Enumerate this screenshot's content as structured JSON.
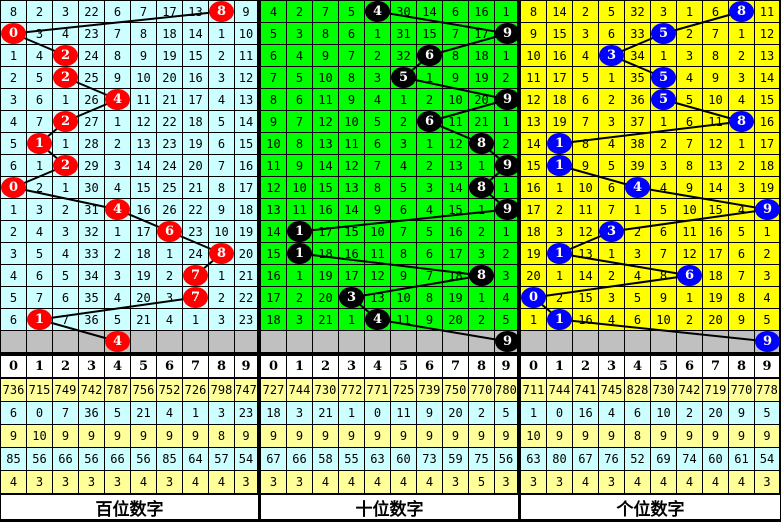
{
  "header_digits": [
    0,
    1,
    2,
    3,
    4,
    5,
    6,
    7,
    8,
    9
  ],
  "sections": [
    {
      "title": "百位数字",
      "bg_color": "#ccffff",
      "ball_color": "#ff0000",
      "balls": [
        8,
        0,
        2,
        2,
        4,
        2,
        1,
        2,
        0,
        4,
        6,
        8,
        7,
        7,
        1
      ],
      "next_ball": 4,
      "rows": [
        [
          8,
          2,
          3,
          22,
          6,
          7,
          17,
          13,
          null,
          9
        ],
        [
          null,
          3,
          4,
          23,
          7,
          8,
          18,
          14,
          1,
          10
        ],
        [
          1,
          4,
          null,
          24,
          8,
          9,
          19,
          15,
          2,
          11
        ],
        [
          2,
          5,
          null,
          25,
          9,
          10,
          20,
          16,
          3,
          12
        ],
        [
          3,
          6,
          1,
          26,
          null,
          11,
          21,
          17,
          4,
          13
        ],
        [
          4,
          7,
          null,
          27,
          1,
          12,
          22,
          18,
          5,
          14
        ],
        [
          5,
          null,
          1,
          28,
          2,
          13,
          23,
          19,
          6,
          15
        ],
        [
          6,
          1,
          null,
          29,
          3,
          14,
          24,
          20,
          7,
          16
        ],
        [
          null,
          2,
          1,
          30,
          4,
          15,
          25,
          21,
          8,
          17
        ],
        [
          1,
          3,
          2,
          31,
          null,
          16,
          26,
          22,
          9,
          18
        ],
        [
          2,
          4,
          3,
          32,
          1,
          17,
          null,
          23,
          10,
          19
        ],
        [
          3,
          5,
          4,
          33,
          2,
          18,
          1,
          24,
          null,
          20
        ],
        [
          4,
          6,
          5,
          34,
          3,
          19,
          2,
          null,
          1,
          21
        ],
        [
          5,
          7,
          6,
          35,
          4,
          20,
          3,
          null,
          2,
          22
        ],
        [
          6,
          null,
          7,
          36,
          5,
          21,
          4,
          1,
          3,
          23
        ]
      ],
      "stats": [
        [
          736,
          715,
          749,
          742,
          787,
          756,
          752,
          726,
          798,
          747
        ],
        [
          6,
          0,
          7,
          36,
          5,
          21,
          4,
          1,
          3,
          23
        ],
        [
          9,
          10,
          9,
          9,
          9,
          9,
          9,
          9,
          8,
          9
        ],
        [
          85,
          56,
          66,
          56,
          66,
          56,
          85,
          64,
          57,
          54
        ],
        [
          4,
          3,
          3,
          3,
          3,
          4,
          3,
          4,
          4,
          3
        ]
      ]
    },
    {
      "title": "十位数字",
      "bg_color": "#00ff00",
      "ball_color": "#000000",
      "balls": [
        4,
        9,
        6,
        5,
        9,
        6,
        8,
        9,
        8,
        9,
        1,
        1,
        8,
        3,
        4
      ],
      "next_ball": 9,
      "rows": [
        [
          4,
          2,
          7,
          5,
          null,
          30,
          14,
          6,
          16,
          1
        ],
        [
          5,
          3,
          8,
          6,
          1,
          31,
          15,
          7,
          17,
          null
        ],
        [
          6,
          4,
          9,
          7,
          2,
          32,
          null,
          8,
          18,
          1
        ],
        [
          7,
          5,
          10,
          8,
          3,
          null,
          1,
          9,
          19,
          2
        ],
        [
          8,
          6,
          11,
          9,
          4,
          1,
          2,
          10,
          20,
          null
        ],
        [
          9,
          7,
          12,
          10,
          5,
          2,
          null,
          11,
          21,
          1
        ],
        [
          10,
          8,
          13,
          11,
          6,
          3,
          1,
          12,
          null,
          2
        ],
        [
          11,
          9,
          14,
          12,
          7,
          4,
          2,
          13,
          1,
          null
        ],
        [
          12,
          10,
          15,
          13,
          8,
          5,
          3,
          14,
          null,
          1
        ],
        [
          13,
          11,
          16,
          14,
          9,
          6,
          4,
          15,
          1,
          null
        ],
        [
          14,
          null,
          17,
          15,
          10,
          7,
          5,
          16,
          2,
          1
        ],
        [
          15,
          null,
          18,
          16,
          11,
          8,
          6,
          17,
          3,
          2
        ],
        [
          16,
          1,
          19,
          17,
          12,
          9,
          7,
          18,
          null,
          3
        ],
        [
          17,
          2,
          20,
          null,
          13,
          10,
          8,
          19,
          1,
          4
        ],
        [
          18,
          3,
          21,
          1,
          null,
          11,
          9,
          20,
          2,
          5
        ]
      ],
      "stats": [
        [
          727,
          744,
          730,
          772,
          771,
          725,
          739,
          750,
          770,
          780
        ],
        [
          18,
          3,
          21,
          1,
          0,
          11,
          9,
          20,
          2,
          5
        ],
        [
          9,
          9,
          9,
          9,
          9,
          9,
          9,
          9,
          9,
          9
        ],
        [
          67,
          66,
          58,
          55,
          63,
          60,
          73,
          59,
          75,
          56
        ],
        [
          3,
          3,
          4,
          4,
          4,
          4,
          4,
          3,
          5,
          3
        ]
      ]
    },
    {
      "title": "个位数字",
      "bg_color": "#ffff00",
      "ball_color": "#0000ff",
      "balls": [
        8,
        5,
        3,
        5,
        5,
        8,
        1,
        1,
        4,
        9,
        3,
        1,
        6,
        0,
        1
      ],
      "next_ball": 9,
      "rows": [
        [
          8,
          14,
          2,
          5,
          32,
          3,
          1,
          6,
          null,
          11
        ],
        [
          9,
          15,
          3,
          6,
          33,
          null,
          2,
          7,
          1,
          12
        ],
        [
          10,
          16,
          4,
          null,
          34,
          1,
          3,
          8,
          2,
          13
        ],
        [
          11,
          17,
          5,
          1,
          35,
          null,
          4,
          9,
          3,
          14
        ],
        [
          12,
          18,
          6,
          2,
          36,
          null,
          5,
          10,
          4,
          15
        ],
        [
          13,
          19,
          7,
          3,
          37,
          1,
          6,
          11,
          null,
          16
        ],
        [
          14,
          null,
          8,
          4,
          38,
          2,
          7,
          12,
          1,
          17
        ],
        [
          15,
          null,
          9,
          5,
          39,
          3,
          8,
          13,
          2,
          18
        ],
        [
          16,
          1,
          10,
          6,
          null,
          4,
          9,
          14,
          3,
          19
        ],
        [
          17,
          2,
          11,
          7,
          1,
          5,
          10,
          15,
          4,
          null
        ],
        [
          18,
          3,
          12,
          null,
          2,
          6,
          11,
          16,
          5,
          1
        ],
        [
          19,
          null,
          13,
          1,
          3,
          7,
          12,
          17,
          6,
          2
        ],
        [
          20,
          1,
          14,
          2,
          4,
          8,
          null,
          18,
          7,
          3
        ],
        [
          null,
          2,
          15,
          3,
          5,
          9,
          1,
          19,
          8,
          4
        ],
        [
          1,
          null,
          16,
          4,
          6,
          10,
          2,
          20,
          9,
          5
        ]
      ],
      "stats": [
        [
          711,
          744,
          741,
          745,
          828,
          730,
          742,
          719,
          770,
          778
        ],
        [
          1,
          0,
          16,
          4,
          6,
          10,
          2,
          20,
          9,
          5
        ],
        [
          10,
          9,
          9,
          9,
          8,
          9,
          9,
          9,
          9,
          9
        ],
        [
          63,
          80,
          67,
          76,
          52,
          69,
          74,
          60,
          61,
          54
        ],
        [
          3,
          3,
          4,
          3,
          4,
          4,
          4,
          4,
          4,
          3
        ]
      ]
    }
  ],
  "colors": {
    "stats_yellow": "#ffff99",
    "stats_cyan": "#ccffff",
    "next_row_gray": "#c0c0c0"
  }
}
